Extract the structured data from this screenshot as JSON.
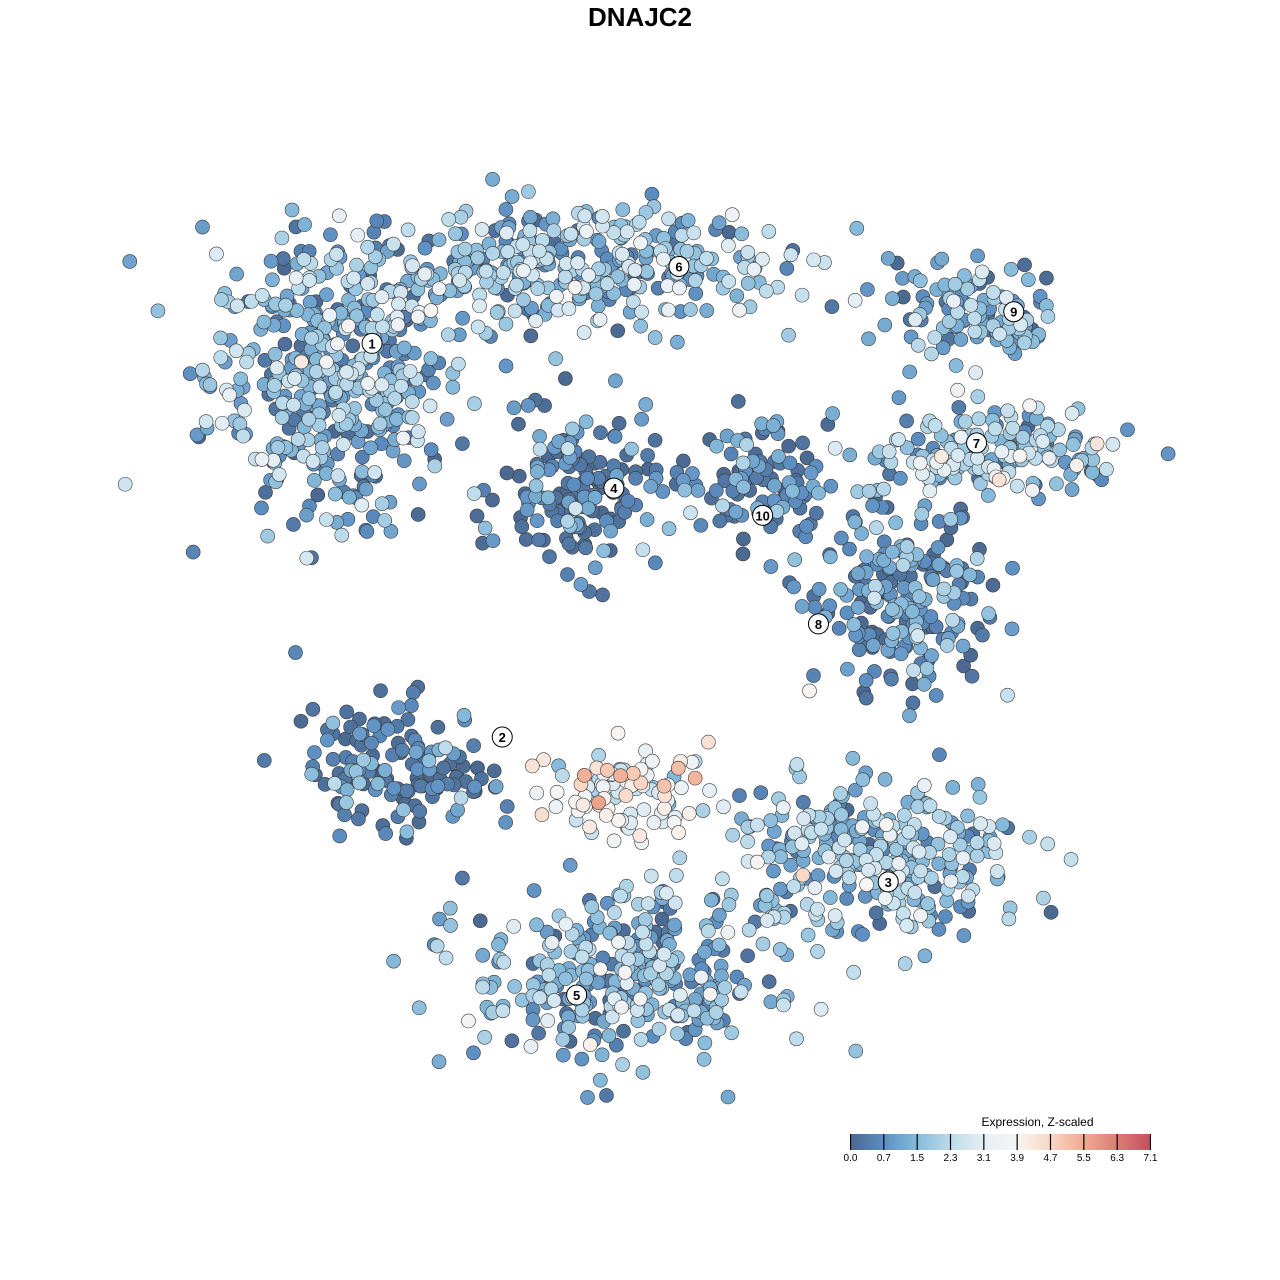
{
  "chart_data": {
    "type": "scatter",
    "title": "DNAJC2",
    "xlabel": "",
    "ylabel": "",
    "axes_visible": false,
    "grid": false,
    "xlim": [
      -10,
      10
    ],
    "ylim": [
      -10,
      10
    ],
    "color_scale": {
      "title": "Expression, Z-scaled",
      "ticks": [
        "0.0",
        "0.7",
        "1.5",
        "2.3",
        "3.1",
        "3.9",
        "4.7",
        "5.5",
        "6.3",
        "7.1"
      ],
      "range": [
        0,
        7.1
      ],
      "colors": [
        "#4a6890",
        "#5c8ec2",
        "#86bada",
        "#bcdbeb",
        "#e6eff5",
        "#f7f5f3",
        "#f9d6c4",
        "#f0aa91",
        "#dc7c74",
        "#c44e5f"
      ],
      "legend_position": "bottom-right"
    },
    "clusters": [
      {
        "label": "1",
        "label_xy": [
          -6.3,
          6.5
        ],
        "center": [
          -7.2,
          5.7
        ],
        "spread": [
          2.6,
          3.0
        ],
        "mean_expression": 1.4
      },
      {
        "label": "6",
        "label_xy": [
          0.3,
          8.2
        ],
        "center": [
          -2.3,
          8.2
        ],
        "spread": [
          4.9,
          1.4
        ],
        "mean_expression": 1.6
      },
      {
        "label": "4",
        "label_xy": [
          -1.1,
          3.3
        ],
        "center": [
          -1.8,
          3.2
        ],
        "spread": [
          1.7,
          1.7
        ],
        "mean_expression": 0.3
      },
      {
        "label": "10",
        "label_xy": [
          2.1,
          2.7
        ],
        "center": [
          2.0,
          3.4
        ],
        "spread": [
          1.5,
          1.3
        ],
        "mean_expression": 0.3
      },
      {
        "label": "9",
        "label_xy": [
          7.5,
          7.2
        ],
        "center": [
          6.8,
          7.2
        ],
        "spread": [
          1.9,
          1.1
        ],
        "mean_expression": 1.4
      },
      {
        "label": "7",
        "label_xy": [
          6.7,
          4.3
        ],
        "center": [
          7.0,
          4.1
        ],
        "spread": [
          2.8,
          1.1
        ],
        "mean_expression": 1.9
      },
      {
        "label": "8",
        "label_xy": [
          3.3,
          0.3
        ],
        "center": [
          5.1,
          0.8
        ],
        "spread": [
          1.9,
          2.0
        ],
        "mean_expression": 0.7
      },
      {
        "label": "2",
        "label_xy": [
          -3.5,
          -2.2
        ],
        "center": [
          -5.7,
          -2.9
        ],
        "spread": [
          1.9,
          1.4
        ],
        "mean_expression": 0.4
      },
      {
        "label": "3",
        "label_xy": [
          4.8,
          -5.4
        ],
        "center": [
          4.6,
          -4.9
        ],
        "spread": [
          3.2,
          1.7
        ],
        "mean_expression": 1.7
      },
      {
        "label": "5",
        "label_xy": [
          -1.9,
          -7.9
        ],
        "center": [
          -1.0,
          -7.5
        ],
        "spread": [
          3.2,
          1.9
        ],
        "mean_expression": 1.4
      },
      {
        "label": "",
        "label_xy": null,
        "center": [
          -0.8,
          -3.4
        ],
        "spread": [
          1.7,
          1.0
        ],
        "mean_expression": 3.4
      }
    ]
  }
}
